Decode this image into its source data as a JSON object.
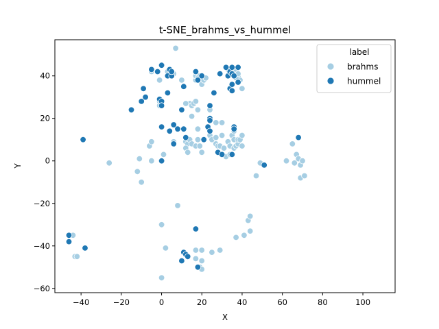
{
  "chart_data": {
    "type": "scatter",
    "title": "t-SNE_brahms_vs_hummel",
    "xlabel": "X",
    "ylabel": "Y",
    "xlim": [
      -53,
      116
    ],
    "ylim": [
      -62,
      57
    ],
    "xticks": [
      -40,
      -20,
      0,
      20,
      40,
      60,
      80,
      100
    ],
    "yticks": [
      -60,
      -40,
      -20,
      0,
      20,
      40
    ],
    "grid": false,
    "legend": {
      "title": "label",
      "placement": "top-right"
    },
    "series": [
      {
        "name": "brahms",
        "color": "#a6cee3",
        "points": [
          [
            7,
            53
          ],
          [
            -5,
            42
          ],
          [
            -1,
            38
          ],
          [
            6,
            41
          ],
          [
            3,
            42
          ],
          [
            10,
            38
          ],
          [
            17,
            38
          ],
          [
            17,
            40
          ],
          [
            18,
            39
          ],
          [
            19,
            40
          ],
          [
            20,
            36
          ],
          [
            21,
            38
          ],
          [
            22,
            39
          ],
          [
            33,
            43
          ],
          [
            36,
            43
          ],
          [
            37,
            43
          ],
          [
            38,
            40
          ],
          [
            39,
            38
          ],
          [
            37,
            39
          ],
          [
            38,
            41
          ],
          [
            40,
            34
          ],
          [
            14,
            27
          ],
          [
            15,
            26
          ],
          [
            16,
            27
          ],
          [
            17,
            28
          ],
          [
            18,
            24
          ],
          [
            15,
            21
          ],
          [
            24,
            24
          ],
          [
            27,
            18
          ],
          [
            30,
            18
          ],
          [
            -1,
            28
          ],
          [
            -1,
            26
          ],
          [
            -6,
            7
          ],
          [
            -5,
            9
          ],
          [
            6,
            9
          ],
          [
            12,
            27
          ],
          [
            12,
            9
          ],
          [
            13,
            8
          ],
          [
            12,
            6
          ],
          [
            13,
            4
          ],
          [
            14,
            10
          ],
          [
            15,
            8
          ],
          [
            17,
            7
          ],
          [
            18,
            10
          ],
          [
            18,
            15
          ],
          [
            19,
            7
          ],
          [
            20,
            4
          ],
          [
            24,
            12
          ],
          [
            25,
            10
          ],
          [
            27,
            11
          ],
          [
            27,
            8
          ],
          [
            28,
            7
          ],
          [
            29,
            7
          ],
          [
            30,
            12
          ],
          [
            31,
            6
          ],
          [
            32,
            2
          ],
          [
            33,
            9
          ],
          [
            34,
            7
          ],
          [
            34,
            3
          ],
          [
            35,
            12
          ],
          [
            36,
            6
          ],
          [
            36,
            10
          ],
          [
            36,
            14
          ],
          [
            37,
            7
          ],
          [
            38,
            8
          ],
          [
            38,
            10
          ],
          [
            39,
            10
          ],
          [
            40,
            7
          ],
          [
            40,
            12
          ],
          [
            -11,
            1
          ],
          [
            -12,
            -5
          ],
          [
            -10,
            -10
          ],
          [
            -5,
            0
          ],
          [
            0,
            0
          ],
          [
            1,
            3
          ],
          [
            -26,
            -1
          ],
          [
            47,
            -7
          ],
          [
            49,
            -1
          ],
          [
            62,
            0
          ],
          [
            65,
            8
          ],
          [
            66,
            -1
          ],
          [
            67,
            3
          ],
          [
            68,
            1
          ],
          [
            69,
            -2
          ],
          [
            70,
            0
          ],
          [
            69,
            -8
          ],
          [
            71,
            -7
          ],
          [
            8,
            -21
          ],
          [
            0,
            -30
          ],
          [
            2,
            -41
          ],
          [
            17,
            -42
          ],
          [
            20,
            -42
          ],
          [
            25,
            -43
          ],
          [
            29,
            -42
          ],
          [
            37,
            -36
          ],
          [
            41,
            -35
          ],
          [
            43,
            -28
          ],
          [
            44,
            -26
          ],
          [
            44,
            -33
          ],
          [
            17,
            -46
          ],
          [
            20,
            -47
          ],
          [
            19,
            -50
          ],
          [
            20,
            -51
          ],
          [
            0,
            -55
          ],
          [
            -44,
            -35
          ],
          [
            -43,
            -45
          ],
          [
            -42,
            -45
          ]
        ]
      },
      {
        "name": "hummel",
        "color": "#1f78b4",
        "points": [
          [
            -5,
            43
          ],
          [
            -2,
            42
          ],
          [
            0,
            45
          ],
          [
            3,
            40
          ],
          [
            5,
            40
          ],
          [
            4,
            43
          ],
          [
            5,
            42
          ],
          [
            11,
            35
          ],
          [
            17,
            42
          ],
          [
            18,
            38
          ],
          [
            20,
            40
          ],
          [
            26,
            32
          ],
          [
            29,
            41
          ],
          [
            32,
            44
          ],
          [
            33,
            40
          ],
          [
            34,
            42
          ],
          [
            35,
            41
          ],
          [
            35,
            44
          ],
          [
            36,
            40
          ],
          [
            38,
            44
          ],
          [
            38,
            37
          ],
          [
            34,
            34
          ],
          [
            35,
            36
          ],
          [
            35,
            33
          ],
          [
            -15,
            24
          ],
          [
            -10,
            28
          ],
          [
            -8,
            30
          ],
          [
            -9,
            34
          ],
          [
            -1,
            29
          ],
          [
            0,
            28
          ],
          [
            0,
            26
          ],
          [
            3,
            32
          ],
          [
            10,
            24
          ],
          [
            24,
            26
          ],
          [
            24,
            20
          ],
          [
            24,
            19
          ],
          [
            23,
            16
          ],
          [
            24,
            14
          ],
          [
            36,
            16
          ],
          [
            36,
            15
          ],
          [
            0,
            16
          ],
          [
            4,
            14
          ],
          [
            6,
            8
          ],
          [
            6,
            17
          ],
          [
            8,
            15
          ],
          [
            11,
            15
          ],
          [
            12,
            11
          ],
          [
            21,
            10
          ],
          [
            28,
            4
          ],
          [
            30,
            3
          ],
          [
            35,
            3
          ],
          [
            -39,
            10
          ],
          [
            0,
            0
          ],
          [
            51,
            -2
          ],
          [
            68,
            11
          ],
          [
            -46,
            -35
          ],
          [
            -46,
            -38
          ],
          [
            -38,
            -41
          ],
          [
            10,
            -47
          ],
          [
            11,
            -43
          ],
          [
            12,
            -44
          ],
          [
            13,
            -45
          ],
          [
            17,
            -32
          ],
          [
            18,
            -50
          ],
          [
            17,
            -32
          ]
        ]
      }
    ]
  }
}
